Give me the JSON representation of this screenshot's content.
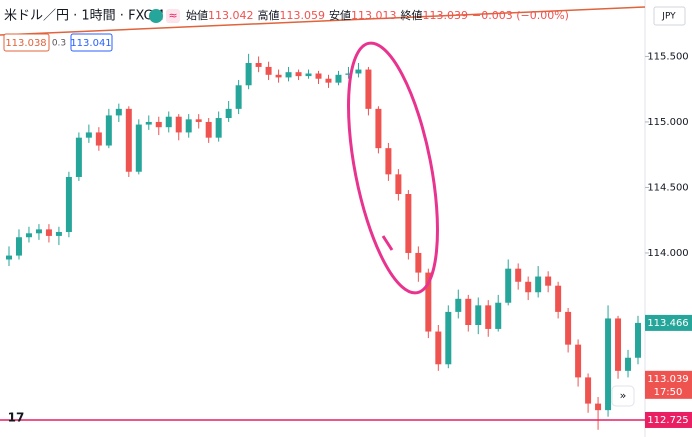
{
  "chart_data": {
    "type": "candlestick",
    "title": "米ドル／円 · 1時間 · FXCM",
    "ohlc_legend": [
      {
        "label": "始値",
        "value": "113.042"
      },
      {
        "label": "高値",
        "value": "113.059"
      },
      {
        "label": "安値",
        "value": "113.013"
      },
      {
        "label": "終値",
        "value": "113.039"
      }
    ],
    "change": "−0.003 (−0.00%)",
    "sell_price": "113.038",
    "spread": "0.3",
    "buy_price": "113.041",
    "currency": "JPY",
    "up_color": "#26a69a",
    "down_color": "#ef5350",
    "ylim": [
      112.595,
      115.931
    ],
    "yticks": [
      {
        "value": 115.5,
        "label": "115.500"
      },
      {
        "value": 115,
        "label": "115.000"
      },
      {
        "value": 114.5,
        "label": "114.500"
      },
      {
        "value": 114,
        "label": "114.000"
      }
    ],
    "open": [
      113.95,
      113.98,
      114.12,
      114.15,
      114.18,
      114.13,
      114.16,
      114.58,
      114.88,
      114.92,
      114.82,
      115.05,
      115.1,
      114.62,
      114.98,
      115.0,
      114.96,
      115.04,
      114.92,
      115.02,
      115.0,
      114.88,
      115.03,
      115.1,
      115.28,
      115.45,
      115.42,
      115.36,
      115.34,
      115.38,
      115.35,
      115.37,
      115.33,
      115.3,
      115.36,
      115.37,
      115.4,
      115.1,
      114.8,
      114.6,
      114.45,
      114.0,
      113.85,
      113.4,
      113.15,
      113.55,
      113.65,
      113.45,
      113.6,
      113.42,
      113.62,
      113.88,
      113.78,
      113.7,
      113.82,
      113.75,
      113.55,
      113.3,
      113.05,
      112.85,
      112.8,
      113.5,
      113.1,
      113.2
    ],
    "high": [
      114.05,
      114.18,
      114.2,
      114.22,
      114.22,
      114.2,
      114.62,
      114.92,
      114.98,
      114.96,
      115.1,
      115.14,
      115.12,
      115.02,
      115.05,
      115.04,
      115.08,
      115.06,
      115.06,
      115.06,
      115.03,
      115.08,
      115.16,
      115.32,
      115.52,
      115.5,
      115.46,
      115.4,
      115.42,
      115.4,
      115.4,
      115.39,
      115.36,
      115.39,
      115.42,
      115.45,
      115.42,
      115.12,
      114.84,
      114.64,
      114.48,
      114.05,
      113.88,
      113.45,
      113.6,
      113.72,
      113.68,
      113.66,
      113.64,
      113.68,
      113.95,
      113.92,
      113.82,
      113.9,
      113.86,
      113.78,
      113.58,
      113.34,
      113.08,
      112.9,
      113.6,
      113.52,
      113.26,
      113.52
    ],
    "low": [
      113.9,
      113.95,
      114.08,
      114.1,
      114.08,
      114.06,
      114.12,
      114.55,
      114.84,
      114.78,
      114.8,
      115.0,
      114.58,
      114.6,
      114.94,
      114.9,
      114.92,
      114.86,
      114.88,
      114.95,
      114.84,
      114.85,
      115.0,
      115.06,
      115.25,
      115.38,
      115.32,
      115.3,
      115.31,
      115.32,
      115.33,
      115.29,
      115.26,
      115.28,
      115.33,
      115.34,
      115.05,
      114.76,
      114.55,
      114.4,
      113.95,
      113.78,
      113.35,
      113.1,
      113.12,
      113.5,
      113.4,
      113.38,
      113.36,
      113.4,
      113.6,
      113.72,
      113.64,
      113.66,
      113.7,
      113.5,
      113.24,
      112.98,
      112.78,
      112.65,
      112.75,
      113.04,
      113.05,
      113.15
    ],
    "close": [
      113.98,
      114.12,
      114.15,
      114.18,
      114.13,
      114.16,
      114.58,
      114.88,
      114.92,
      114.82,
      115.05,
      115.1,
      114.62,
      114.98,
      115.0,
      114.96,
      115.04,
      114.92,
      115.02,
      115.0,
      114.88,
      115.03,
      115.1,
      115.28,
      115.45,
      115.42,
      115.36,
      115.34,
      115.38,
      115.35,
      115.37,
      115.33,
      115.3,
      115.36,
      115.37,
      115.4,
      115.1,
      114.8,
      114.6,
      114.45,
      114.0,
      113.85,
      113.4,
      113.15,
      113.55,
      113.65,
      113.45,
      113.6,
      113.42,
      113.62,
      113.88,
      113.78,
      113.7,
      113.82,
      113.75,
      113.55,
      113.3,
      113.05,
      112.85,
      112.8,
      113.5,
      113.1,
      113.2,
      113.466
    ],
    "price_labels": [
      {
        "value": 113.466,
        "color": "#26a69a"
      },
      {
        "value": 113.039,
        "color": "#ef5350",
        "countdown": "17:50"
      },
      {
        "value": 112.725,
        "color": "#e91e63"
      }
    ]
  }
}
